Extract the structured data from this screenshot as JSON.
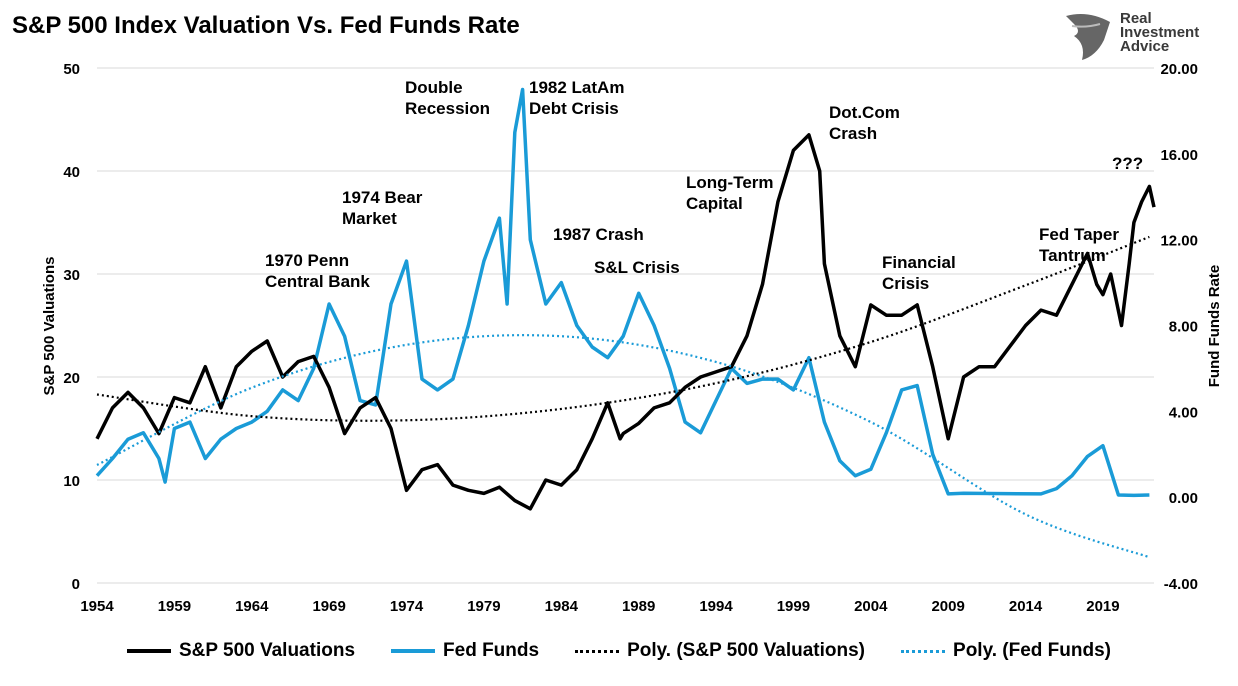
{
  "title": "S&P 500 Index Valuation Vs. Fed Funds Rate",
  "logo_text": [
    "Real",
    "Investment",
    "Advice"
  ],
  "colors": {
    "sp500": "#000000",
    "fed": "#1a9bd7",
    "grid": "#d9d9d9"
  },
  "chart_data": {
    "type": "line",
    "title": "S&P 500 Index Valuation Vs. Fed Funds Rate",
    "ylabel": "S&P 500 Valuations",
    "y2label": "Fund Funds Rate",
    "ylim": [
      0,
      50
    ],
    "y2lim": [
      -4,
      20
    ],
    "xlim": [
      1954,
      2022.3
    ],
    "yticks": [
      "0",
      "10",
      "20",
      "30",
      "40",
      "50"
    ],
    "y2ticks": [
      "-4.00",
      "0.00",
      "4.00",
      "8.00",
      "12.00",
      "16.00",
      "20.00"
    ],
    "xticks": [
      "1954",
      "1959",
      "1964",
      "1969",
      "1974",
      "1979",
      "1984",
      "1989",
      "1994",
      "1999",
      "2004",
      "2009",
      "2014",
      "2019"
    ],
    "grid": true,
    "legend_position": "bottom",
    "series": [
      {
        "name": "S&P 500 Valuations",
        "axis": "left",
        "style": "solid",
        "x": [
          1954,
          1955,
          1956,
          1957,
          1958,
          1959,
          1960,
          1961,
          1962,
          1963,
          1964,
          1965,
          1966,
          1967,
          1968,
          1969,
          1970,
          1971,
          1972,
          1973,
          1974,
          1975,
          1976,
          1977,
          1978,
          1979,
          1980,
          1981,
          1982,
          1983,
          1984,
          1985,
          1986,
          1987,
          1987.8,
          1988,
          1989,
          1990,
          1991,
          1992,
          1993,
          1994,
          1995,
          1996,
          1997,
          1998,
          1999,
          2000,
          2000.7,
          2001,
          2002,
          2003,
          2004,
          2005,
          2006,
          2007,
          2008,
          2009,
          2010,
          2011,
          2012,
          2013,
          2014,
          2015,
          2016,
          2017,
          2018,
          2018.6,
          2019,
          2019.5,
          2020.2,
          2020.7,
          2021,
          2021.5,
          2022,
          2022.3
        ],
        "values": [
          14,
          17,
          18.5,
          17,
          14.5,
          18,
          17.5,
          21,
          17,
          21,
          22.5,
          23.5,
          20,
          21.5,
          22,
          19,
          14.5,
          17,
          18,
          15,
          9,
          11,
          11.5,
          9.5,
          9,
          8.7,
          9.3,
          8,
          7.2,
          10,
          9.5,
          11,
          14,
          17.5,
          14,
          14.5,
          15.5,
          17,
          17.5,
          19,
          20,
          20.5,
          21,
          24,
          29,
          37,
          42,
          43.5,
          40,
          31,
          24,
          21,
          27,
          26,
          26,
          27,
          21,
          14,
          20,
          21,
          21,
          23,
          25,
          26.5,
          26,
          29,
          32,
          29,
          28,
          30,
          25,
          31,
          35,
          37,
          38.5,
          36.5
        ]
      },
      {
        "name": "Fed Funds",
        "axis": "right",
        "style": "solid",
        "x": [
          1954,
          1955,
          1956,
          1957,
          1958,
          1958.4,
          1959,
          1960,
          1961,
          1962,
          1963,
          1964,
          1965,
          1966,
          1967,
          1968,
          1969,
          1970,
          1971,
          1972,
          1973,
          1974,
          1975,
          1976,
          1977,
          1978,
          1979,
          1980,
          1980.5,
          1981,
          1981.5,
          1982,
          1983,
          1984,
          1985,
          1986,
          1987,
          1988,
          1989,
          1990,
          1991,
          1992,
          1993,
          1994,
          1995,
          1996,
          1997,
          1998,
          1999,
          2000,
          2001,
          2002,
          2003,
          2004,
          2005,
          2006,
          2007,
          2008,
          2009,
          2010,
          2015,
          2016,
          2017,
          2018,
          2019,
          2020,
          2021,
          2022
        ],
        "values": [
          1,
          1.8,
          2.7,
          3,
          1.8,
          0.7,
          3.2,
          3.5,
          1.8,
          2.7,
          3.2,
          3.5,
          4,
          5,
          4.5,
          6,
          9,
          7.5,
          4.5,
          4.3,
          9,
          11,
          5.5,
          5,
          5.5,
          8,
          11,
          13,
          9,
          17,
          19,
          12,
          9,
          10,
          8,
          7,
          6.5,
          7.5,
          9.5,
          8,
          6,
          3.5,
          3,
          4.5,
          6,
          5.3,
          5.5,
          5.5,
          5,
          6.5,
          3.5,
          1.7,
          1,
          1.3,
          3,
          5,
          5.2,
          2,
          0.15,
          0.18,
          0.15,
          0.4,
          1,
          1.9,
          2.4,
          0.1,
          0.08,
          0.1
        ]
      },
      {
        "name": "Poly. (S&P 500 Valuations)",
        "axis": "left",
        "style": "dotted",
        "x": [
          1954,
          1964,
          1974,
          1984,
          1994,
          2004,
          2014,
          2022
        ],
        "values": [
          18.3,
          16.2,
          15.8,
          16.9,
          19.4,
          23.4,
          28.9,
          33.6
        ]
      },
      {
        "name": "Poly. (Fed Funds)",
        "axis": "right",
        "style": "dotted",
        "x": [
          1954,
          1964,
          1974,
          1984,
          1994,
          2004,
          2014,
          2022
        ],
        "values": [
          1.5,
          5.1,
          7.1,
          7.5,
          6.3,
          3.5,
          -0.8,
          -2.8
        ]
      }
    ],
    "annotations": [
      "1970 Penn\nCentral Bank",
      "1974 Bear\nMarket",
      "Double\nRecession",
      "1982 LatAm\nDebt Crisis",
      "1987 Crash",
      "S&L Crisis",
      "Long-Term\nCapital",
      "Dot.Com\nCrash",
      "Financial\nCrisis",
      "Fed Taper\nTantrum",
      "???"
    ]
  }
}
